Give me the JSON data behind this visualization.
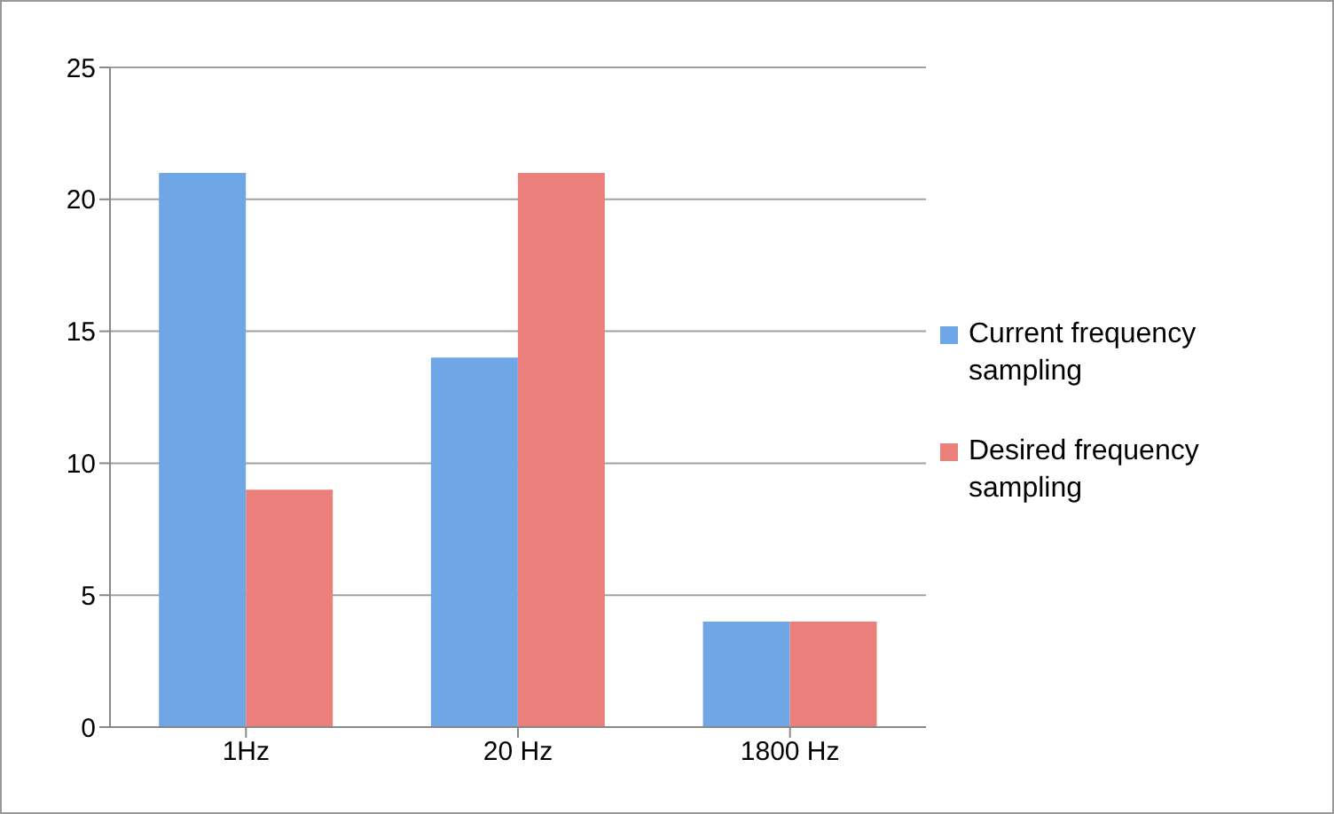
{
  "chart_data": {
    "type": "bar",
    "categories": [
      "1Hz",
      "20 Hz",
      "1800 Hz"
    ],
    "series": [
      {
        "name": "Current frequency sampling",
        "color": "#6fa6e6",
        "values": [
          21,
          14,
          4
        ]
      },
      {
        "name": "Desired frequency sampling",
        "color": "#ea7f7c",
        "values": [
          9,
          21,
          4
        ]
      }
    ],
    "ylim": [
      0,
      25
    ],
    "yticks": [
      0,
      5,
      10,
      15,
      20,
      25
    ],
    "grid": "y",
    "legend": "right"
  }
}
